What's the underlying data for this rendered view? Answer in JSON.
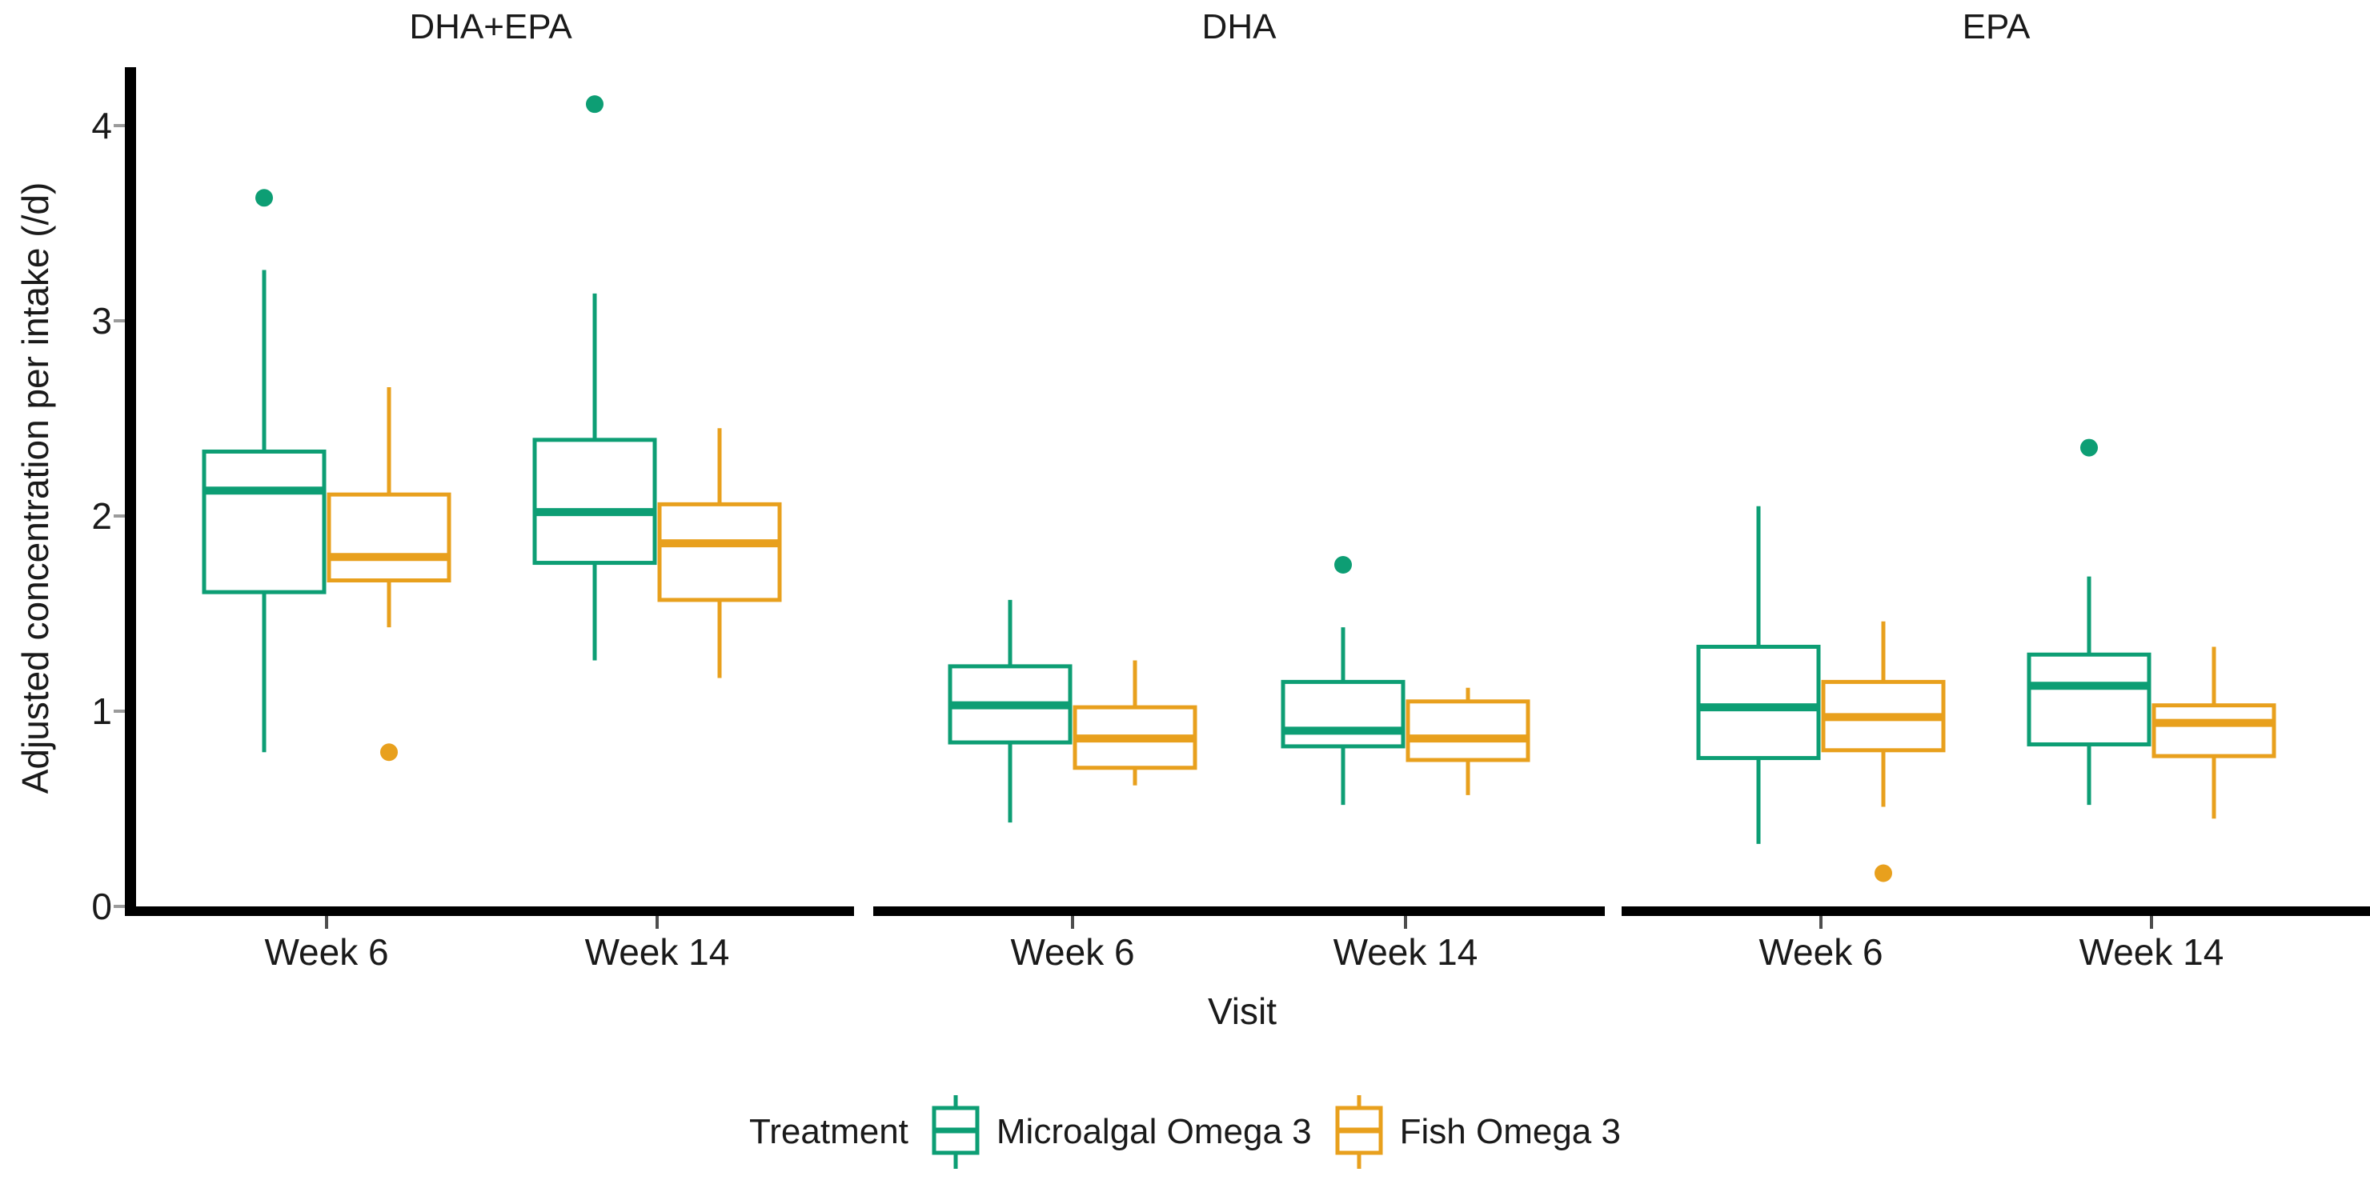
{
  "chart_data": {
    "type": "boxplot",
    "ylabel": "Adjusted concentration per intake (/d)",
    "xlabel": "Visit",
    "ylim": [
      0,
      4.3
    ],
    "yticks": [
      4,
      3,
      2,
      1,
      0
    ],
    "categories": [
      "Week 6",
      "Week 14"
    ],
    "grid": "off",
    "legend_position": "bottom",
    "colors": {
      "microalgal_green": "#0D9E74",
      "fish_orange": "#E8A01D",
      "axis_black": "#000000",
      "text": "#1A1A1A",
      "xtick_mark": "#4D4D4D",
      "ytick_mark": "#9B9B9B"
    },
    "legend": {
      "title": "Treatment",
      "entries": [
        {
          "label": "Microalgal Omega 3",
          "color": "#0D9E74"
        },
        {
          "label": "Fish Omega 3",
          "color": "#E8A01D"
        }
      ]
    },
    "panels": [
      {
        "title": "DHA+EPA",
        "groups": [
          {
            "visit": "Week 6",
            "series": [
              {
                "name": "Microalgal Omega 3",
                "min": 0.79,
                "q1": 1.61,
                "median": 2.13,
                "q3": 2.33,
                "max": 3.26,
                "outliers": [
                  3.63
                ]
              },
              {
                "name": "Fish Omega 3",
                "min": 1.43,
                "q1": 1.67,
                "median": 1.79,
                "q3": 2.11,
                "max": 2.66,
                "outliers": [
                  0.79
                ]
              }
            ]
          },
          {
            "visit": "Week 14",
            "series": [
              {
                "name": "Microalgal Omega 3",
                "min": 1.26,
                "q1": 1.76,
                "median": 2.02,
                "q3": 2.39,
                "max": 3.14,
                "outliers": [
                  4.11
                ]
              },
              {
                "name": "Fish Omega 3",
                "min": 1.17,
                "q1": 1.57,
                "median": 1.86,
                "q3": 2.06,
                "max": 2.45,
                "outliers": []
              }
            ]
          }
        ]
      },
      {
        "title": "DHA",
        "groups": [
          {
            "visit": "Week 6",
            "series": [
              {
                "name": "Microalgal Omega 3",
                "min": 0.43,
                "q1": 0.84,
                "median": 1.03,
                "q3": 1.23,
                "max": 1.57,
                "outliers": []
              },
              {
                "name": "Fish Omega 3",
                "min": 0.62,
                "q1": 0.71,
                "median": 0.86,
                "q3": 1.02,
                "max": 1.26,
                "outliers": []
              }
            ]
          },
          {
            "visit": "Week 14",
            "series": [
              {
                "name": "Microalgal Omega 3",
                "min": 0.52,
                "q1": 0.82,
                "median": 0.9,
                "q3": 1.15,
                "max": 1.43,
                "outliers": [
                  1.75
                ]
              },
              {
                "name": "Fish Omega 3",
                "min": 0.57,
                "q1": 0.75,
                "median": 0.86,
                "q3": 1.05,
                "max": 1.12,
                "outliers": []
              }
            ]
          }
        ]
      },
      {
        "title": "EPA",
        "groups": [
          {
            "visit": "Week 6",
            "series": [
              {
                "name": "Microalgal Omega 3",
                "min": 0.32,
                "q1": 0.76,
                "median": 1.02,
                "q3": 1.33,
                "max": 2.05,
                "outliers": []
              },
              {
                "name": "Fish Omega 3",
                "min": 0.51,
                "q1": 0.8,
                "median": 0.97,
                "q3": 1.15,
                "max": 1.46,
                "outliers": [
                  0.17
                ]
              }
            ]
          },
          {
            "visit": "Week 14",
            "series": [
              {
                "name": "Microalgal Omega 3",
                "min": 0.52,
                "q1": 0.83,
                "median": 1.13,
                "q3": 1.29,
                "max": 1.69,
                "outliers": [
                  2.35
                ]
              },
              {
                "name": "Fish Omega 3",
                "min": 0.45,
                "q1": 0.77,
                "median": 0.94,
                "q3": 1.03,
                "max": 1.33,
                "outliers": []
              }
            ]
          }
        ]
      }
    ]
  }
}
